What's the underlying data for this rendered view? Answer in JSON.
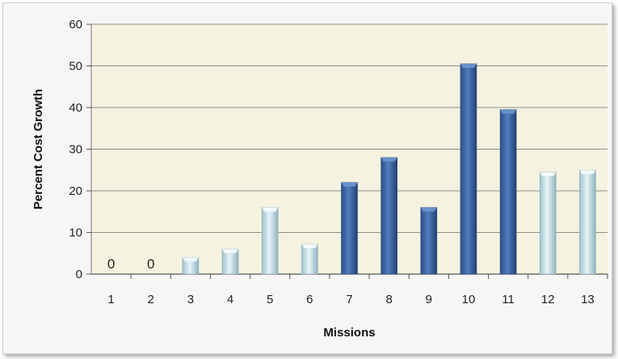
{
  "chart_data": {
    "type": "bar",
    "title": "",
    "xlabel": "Missions",
    "ylabel": "Percent Cost Growth",
    "categories": [
      "1",
      "2",
      "3",
      "4",
      "5",
      "6",
      "7",
      "8",
      "9",
      "10",
      "11",
      "12",
      "13"
    ],
    "values": [
      0,
      0,
      4,
      6,
      16,
      7.2,
      22,
      28,
      16,
      50.5,
      39.5,
      24.5,
      25
    ],
    "highlighted": [
      false,
      false,
      false,
      false,
      false,
      false,
      true,
      true,
      true,
      true,
      true,
      false,
      false
    ],
    "data_labels": [
      "0",
      "0",
      "",
      "",
      "",
      "",
      "",
      "",
      "",
      "",
      "",
      "",
      ""
    ],
    "ylim": [
      0,
      60
    ],
    "yticks": [
      0,
      10,
      20,
      30,
      40,
      50,
      60
    ],
    "grid": true,
    "legend": "none",
    "colors": {
      "plot_background": "#f5f3df",
      "dark_bar": "#3f6aa5",
      "light_bar": "#c4dfe7",
      "gridline": "#8c8c8c"
    }
  }
}
